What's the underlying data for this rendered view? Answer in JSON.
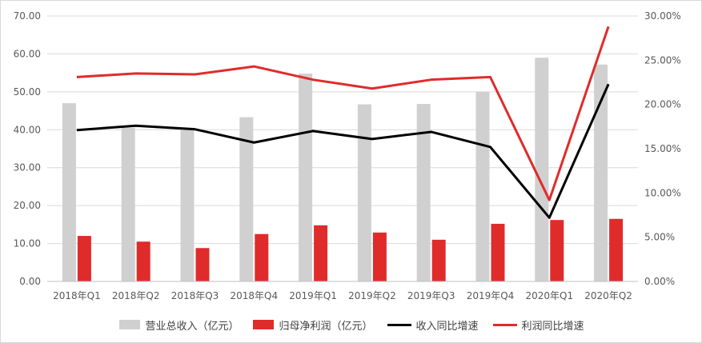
{
  "chart_data": {
    "type": "bar",
    "categories": [
      "2018年Q1",
      "2018年Q2",
      "2018年Q3",
      "2018年Q4",
      "2019年Q1",
      "2019年Q2",
      "2019年Q3",
      "2019年Q4",
      "2020年Q1",
      "2020年Q2"
    ],
    "series": [
      {
        "name": "营业总收入（亿元）",
        "type": "bar",
        "axis": "left",
        "color": "#d0d0d0",
        "values": [
          47.0,
          40.5,
          40.2,
          43.3,
          54.8,
          46.7,
          46.8,
          50.0,
          59.0,
          57.2
        ]
      },
      {
        "name": "归母净利润（亿元）",
        "type": "bar",
        "axis": "left",
        "color": "#e02b2b",
        "values": [
          12.0,
          10.5,
          8.8,
          12.5,
          14.8,
          12.9,
          11.0,
          15.2,
          16.2,
          16.5
        ]
      },
      {
        "name": "收入同比增速",
        "type": "line",
        "axis": "right",
        "color": "#000000",
        "values": [
          17.1,
          17.6,
          17.2,
          15.7,
          17.0,
          16.1,
          16.9,
          15.2,
          7.2,
          22.3
        ]
      },
      {
        "name": "利润同比增速",
        "type": "line",
        "axis": "right",
        "color": "#e02b2b",
        "values": [
          23.1,
          23.5,
          23.4,
          24.3,
          22.8,
          21.8,
          22.8,
          23.1,
          9.2,
          28.8
        ]
      }
    ],
    "y_left": {
      "min": 0,
      "max": 70,
      "ticks": [
        "0.00",
        "10.00",
        "20.00",
        "30.00",
        "40.00",
        "50.00",
        "60.00",
        "70.00"
      ]
    },
    "y_right": {
      "min": 0,
      "max": 30,
      "ticks": [
        "0.00%",
        "5.00%",
        "10.00%",
        "15.00%",
        "20.00%",
        "25.00%",
        "30.00%"
      ]
    },
    "grid": true,
    "legend_position": "bottom"
  }
}
